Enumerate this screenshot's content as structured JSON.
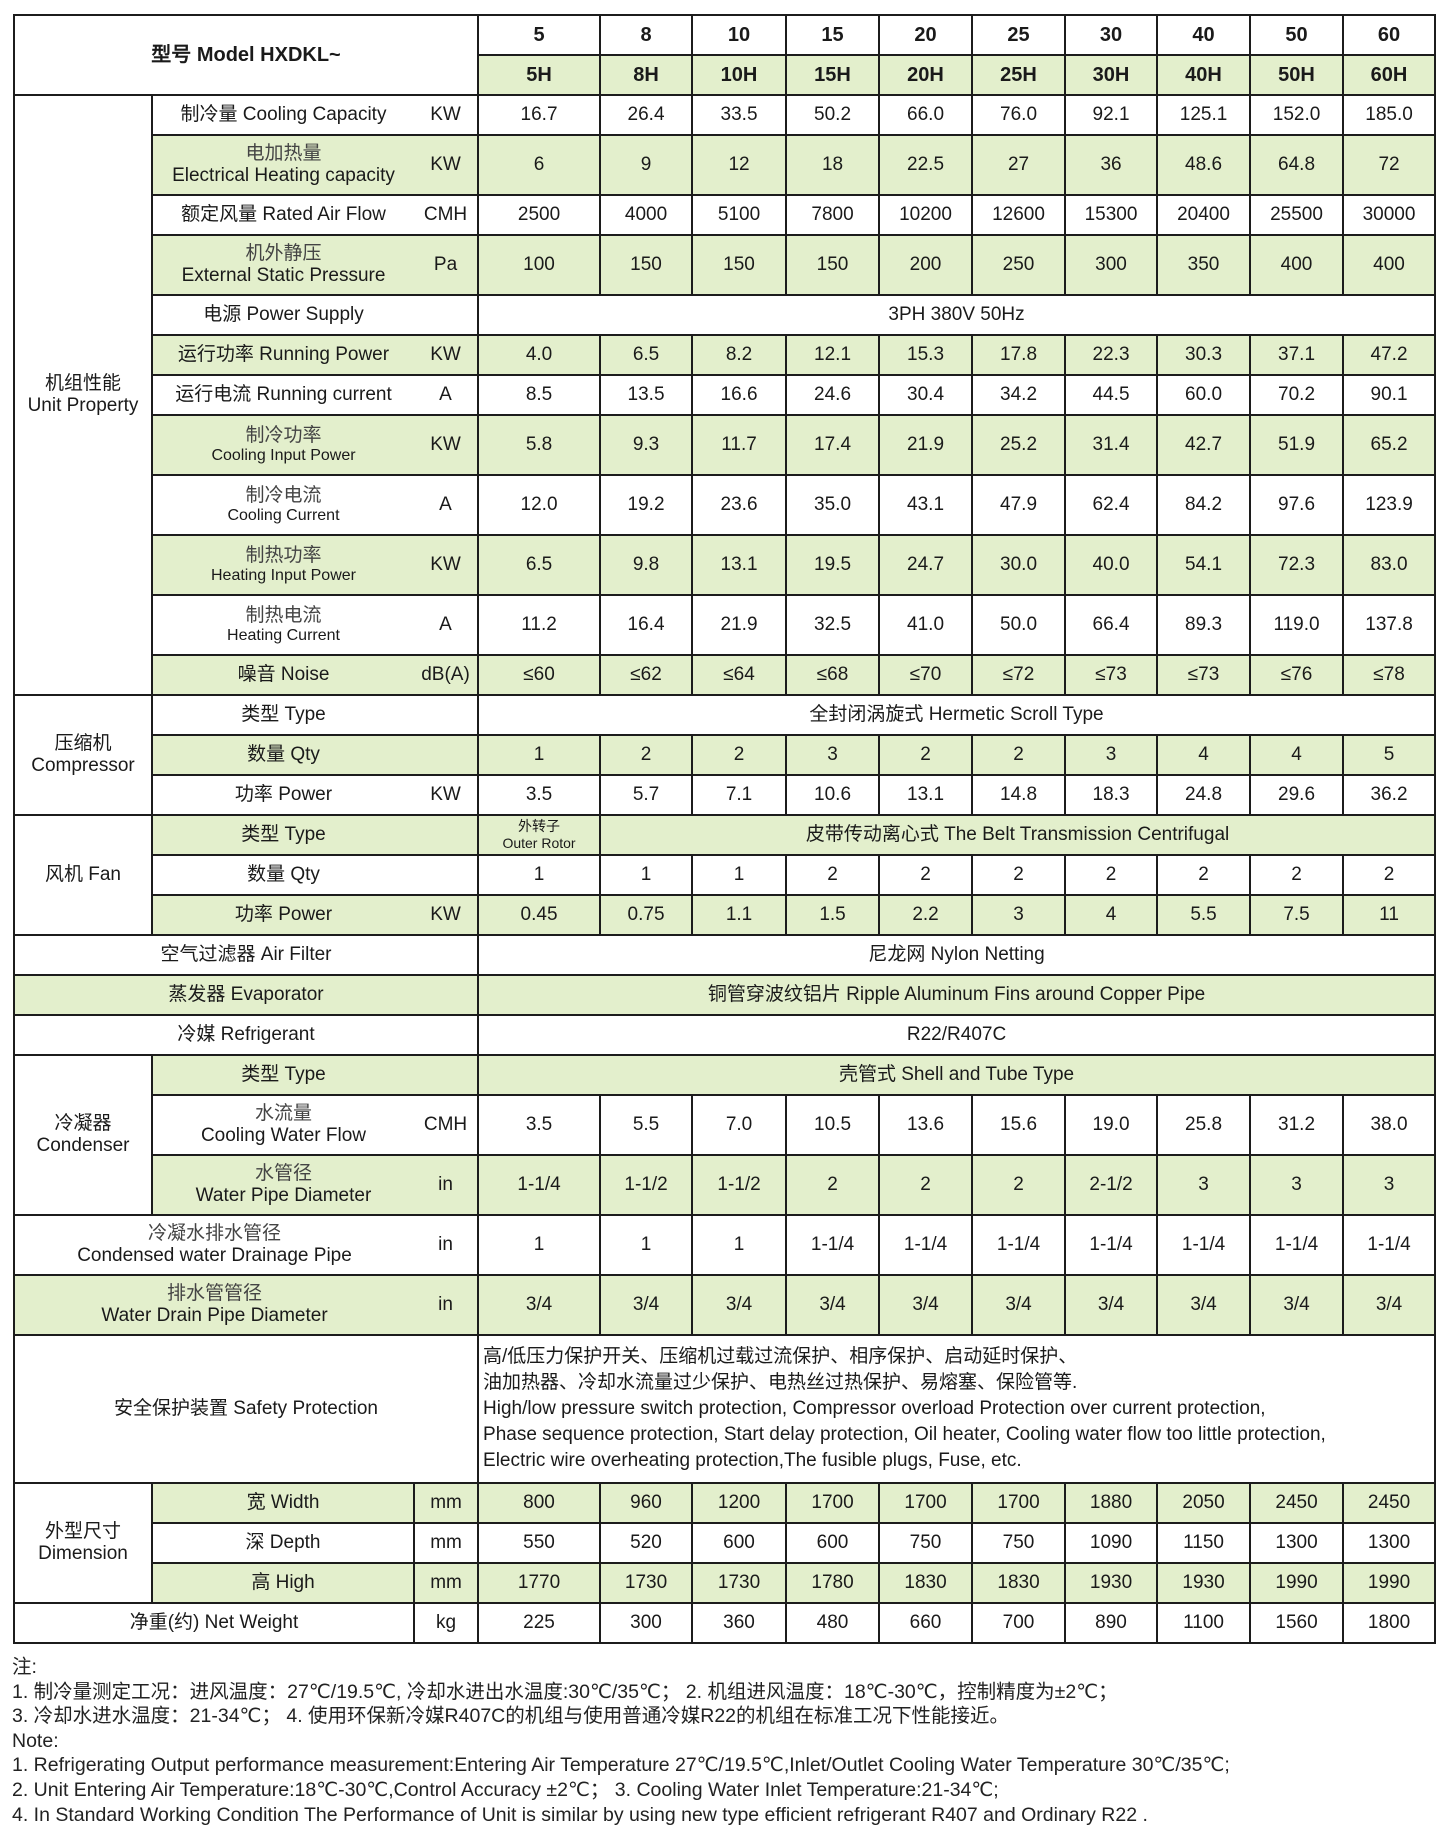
{
  "header": {
    "model_label": "型号  Model HXDKL~",
    "models": [
      "5",
      "8",
      "10",
      "15",
      "20",
      "25",
      "30",
      "40",
      "50",
      "60"
    ],
    "hp": [
      "5H",
      "8H",
      "10H",
      "15H",
      "20H",
      "25H",
      "30H",
      "40H",
      "50H",
      "60H"
    ]
  },
  "highlight_color": "#e3efcc",
  "sections": [
    {
      "group": "机组性能\nUnit Property",
      "rows": [
        {
          "label": "制冷量 Cooling Capacity",
          "unit": "KW",
          "values": [
            "16.7",
            "26.4",
            "33.5",
            "50.2",
            "66.0",
            "76.0",
            "92.1",
            "125.1",
            "152.0",
            "185.0"
          ],
          "green": false,
          "tall": false
        },
        {
          "label": "电加热量\nElectrical Heating capacity",
          "unit": "KW",
          "values": [
            "6",
            "9",
            "12",
            "18",
            "22.5",
            "27",
            "36",
            "48.6",
            "64.8",
            "72"
          ],
          "green": true,
          "tall": true
        },
        {
          "label": "额定风量 Rated Air Flow",
          "unit": "CMH",
          "values": [
            "2500",
            "4000",
            "5100",
            "7800",
            "10200",
            "12600",
            "15300",
            "20400",
            "25500",
            "30000"
          ],
          "green": false,
          "tall": false
        },
        {
          "label": "机外静压\nExternal Static Pressure",
          "unit": "Pa",
          "values": [
            "100",
            "150",
            "150",
            "150",
            "200",
            "250",
            "300",
            "350",
            "400",
            "400"
          ],
          "green": true,
          "tall": true
        },
        {
          "label": "电源  Power Supply",
          "unit": "",
          "span": "3PH 380V 50Hz",
          "green": false,
          "tall": false
        },
        {
          "label": "运行功率  Running Power",
          "unit": "KW",
          "values": [
            "4.0",
            "6.5",
            "8.2",
            "12.1",
            "15.3",
            "17.8",
            "22.3",
            "30.3",
            "37.1",
            "47.2"
          ],
          "green": true,
          "tall": false
        },
        {
          "label": "运行电流 Running current",
          "unit": "A",
          "values": [
            "8.5",
            "13.5",
            "16.6",
            "24.6",
            "30.4",
            "34.2",
            "44.5",
            "60.0",
            "70.2",
            "90.1"
          ],
          "green": false,
          "tall": false
        },
        {
          "label": "制冷功率\nCooling Input Power",
          "unit": "KW",
          "values": [
            "5.8",
            "9.3",
            "11.7",
            "17.4",
            "21.9",
            "25.2",
            "31.4",
            "42.7",
            "51.9",
            "65.2"
          ],
          "green": true,
          "tall": true,
          "small_en": true
        },
        {
          "label": "制冷电流\nCooling Current",
          "unit": "A",
          "values": [
            "12.0",
            "19.2",
            "23.6",
            "35.0",
            "43.1",
            "47.9",
            "62.4",
            "84.2",
            "97.6",
            "123.9"
          ],
          "green": false,
          "tall": true,
          "small_en": true
        },
        {
          "label": "制热功率\nHeating Input Power",
          "unit": "KW",
          "values": [
            "6.5",
            "9.8",
            "13.1",
            "19.5",
            "24.7",
            "30.0",
            "40.0",
            "54.1",
            "72.3",
            "83.0"
          ],
          "green": true,
          "tall": true,
          "small_en": true
        },
        {
          "label": "制热电流\nHeating Current",
          "unit": "A",
          "values": [
            "11.2",
            "16.4",
            "21.9",
            "32.5",
            "41.0",
            "50.0",
            "66.4",
            "89.3",
            "119.0",
            "137.8"
          ],
          "green": false,
          "tall": true,
          "small_en": true
        },
        {
          "label": "噪音  Noise",
          "unit": "dB(A)",
          "values": [
            "≤60",
            "≤62",
            "≤64",
            "≤68",
            "≤70",
            "≤72",
            "≤73",
            "≤73",
            "≤76",
            "≤78"
          ],
          "green": true,
          "tall": false
        }
      ]
    },
    {
      "group": "压缩机\nCompressor",
      "rows": [
        {
          "label": "类型  Type",
          "unit": "",
          "span": "全封闭涡旋式  Hermetic Scroll Type",
          "green": false,
          "tall": false
        },
        {
          "label": "数量  Qty",
          "unit": "",
          "values": [
            "1",
            "2",
            "2",
            "3",
            "2",
            "2",
            "3",
            "4",
            "4",
            "5"
          ],
          "green": true,
          "tall": false
        },
        {
          "label": "功率   Power",
          "unit": "KW",
          "values": [
            "3.5",
            "5.7",
            "7.1",
            "10.6",
            "13.1",
            "14.8",
            "18.3",
            "24.8",
            "29.6",
            "36.2"
          ],
          "green": false,
          "tall": false
        }
      ]
    },
    {
      "group": "风机  Fan",
      "rows": [
        {
          "label": "类型  Type",
          "unit": "",
          "first": "外转子\nOuter Rotor",
          "span": "皮带传动离心式 The Belt Transmission Centrifugal",
          "green": true,
          "tall": false,
          "fan": true
        },
        {
          "label": "数量  Qty",
          "unit": "",
          "values": [
            "1",
            "1",
            "1",
            "2",
            "2",
            "2",
            "2",
            "2",
            "2",
            "2"
          ],
          "green": false,
          "tall": false
        },
        {
          "label": "功率  Power",
          "unit": "KW",
          "values": [
            "0.45",
            "0.75",
            "1.1",
            "1.5",
            "2.2",
            "3",
            "4",
            "5.5",
            "7.5",
            "11"
          ],
          "green": true,
          "tall": false
        }
      ]
    },
    {
      "group": null,
      "rows": [
        {
          "label": "空气过滤器  Air Filter",
          "full": true,
          "span": "尼龙网 Nylon Netting",
          "green": false,
          "tall": false
        },
        {
          "label": "蒸发器  Evaporator",
          "full": true,
          "span": "铜管穿波纹铝片  Ripple Aluminum Fins around Copper Pipe",
          "green": true,
          "tall": false
        },
        {
          "label": "冷媒  Refrigerant",
          "full": true,
          "span": "R22/R407C",
          "green": false,
          "tall": false
        }
      ]
    },
    {
      "group": "冷凝器\nCondenser",
      "rows": [
        {
          "label": "类型  Type",
          "unit": "",
          "span": "壳管式  Shell and Tube Type",
          "green": true,
          "tall": false
        },
        {
          "label": "水流量\nCooling Water Flow",
          "unit": "CMH",
          "values": [
            "3.5",
            "5.5",
            "7.0",
            "10.5",
            "13.6",
            "15.6",
            "19.0",
            "25.8",
            "31.2",
            "38.0"
          ],
          "green": false,
          "tall": true
        },
        {
          "label": "水管径\nWater Pipe Diameter",
          "unit": "in",
          "values": [
            "1-1/4",
            "1-1/2",
            "1-1/2",
            "2",
            "2",
            "2",
            "2-1/2",
            "3",
            "3",
            "3"
          ],
          "green": true,
          "tall": true
        }
      ]
    },
    {
      "group": null,
      "rows": [
        {
          "label": "冷凝水排水管径\nCondensed water Drainage Pipe",
          "wide": true,
          "unit": "in",
          "values": [
            "1",
            "1",
            "1",
            "1-1/4",
            "1-1/4",
            "1-1/4",
            "1-1/4",
            "1-1/4",
            "1-1/4",
            "1-1/4"
          ],
          "green": false,
          "tall": true
        },
        {
          "label": "排水管管径\nWater Drain Pipe Diameter",
          "wide": true,
          "unit": "in",
          "values": [
            "3/4",
            "3/4",
            "3/4",
            "3/4",
            "3/4",
            "3/4",
            "3/4",
            "3/4",
            "3/4",
            "3/4"
          ],
          "green": true,
          "tall": true
        },
        {
          "label": "安全保护装置 Safety Protection",
          "full": true,
          "safety": true,
          "lines": [
            "高/低压力保护开关、压缩机过载过流保护、相序保护、启动延时保护、",
            "油加热器、冷却水流量过少保护、电热丝过热保护、易熔塞、保险管等.",
            "High/low pressure switch protection, Compressor overload Protection over current protection,",
            "Phase sequence protection, Start delay protection, Oil heater, Cooling water flow too little protection,",
            "Electric wire overheating protection,The fusible plugs, Fuse, etc."
          ],
          "green": false
        }
      ]
    },
    {
      "group": "外型尺寸\nDimension",
      "boxed_unit": true,
      "rows": [
        {
          "label": "宽  Width",
          "unit": "mm",
          "values": [
            "800",
            "960",
            "1200",
            "1700",
            "1700",
            "1700",
            "1880",
            "2050",
            "2450",
            "2450"
          ],
          "green": true,
          "tall": false
        },
        {
          "label": "深  Depth",
          "unit": "mm",
          "values": [
            "550",
            "520",
            "600",
            "600",
            "750",
            "750",
            "1090",
            "1150",
            "1300",
            "1300"
          ],
          "green": false,
          "tall": false
        },
        {
          "label": "高  High",
          "unit": "mm",
          "values": [
            "1770",
            "1730",
            "1730",
            "1780",
            "1830",
            "1830",
            "1930",
            "1930",
            "1990",
            "1990"
          ],
          "green": true,
          "tall": false
        }
      ]
    },
    {
      "group": null,
      "rows": [
        {
          "label": "净重(约)  Net Weight",
          "wide": true,
          "boxed_unit": true,
          "unit": "kg",
          "values": [
            "225",
            "300",
            "360",
            "480",
            "660",
            "700",
            "890",
            "1100",
            "1560",
            "1800"
          ],
          "green": false,
          "tall": false
        }
      ]
    }
  ],
  "notes": [
    "注:",
    "1. 制冷量测定工况：进风温度：27℃/19.5℃, 冷却水进出水温度:30℃/35℃； 2. 机组进风温度：18℃-30℃，控制精度为±2℃；",
    "3. 冷却水进水温度：21-34℃；  4. 使用环保新冷媒R407C的机组与使用普通冷媒R22的机组在标准工况下性能接近。",
    "Note:",
    "1. Refrigerating Output performance measurement:Entering Air Temperature 27℃/19.5℃,Inlet/Outlet Cooling Water Temperature 30℃/35℃;",
    "2. Unit Entering Air Temperature:18℃-30℃,Control Accuracy ±2℃；  3. Cooling Water Inlet Temperature:21-34℃;",
    "4. In Standard Working Condition The Performance of Unit is similar by using new type efficient refrigerant R407 and Ordinary R22 ."
  ]
}
